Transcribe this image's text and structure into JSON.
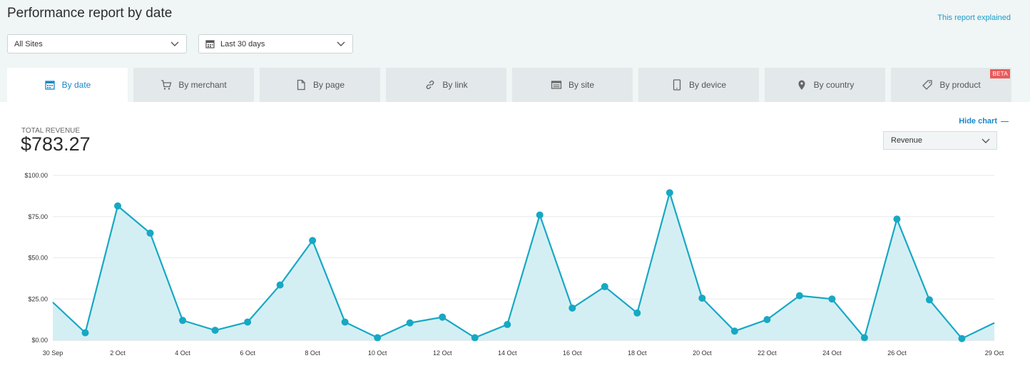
{
  "header": {
    "title": "Performance report by date",
    "explained_link": "This report explained"
  },
  "filters": {
    "sites": "All Sites",
    "period": "Last 30 days"
  },
  "tabs": [
    {
      "label": "By date",
      "icon": "calendar-icon",
      "active": true
    },
    {
      "label": "By merchant",
      "icon": "cart-icon"
    },
    {
      "label": "By page",
      "icon": "page-icon"
    },
    {
      "label": "By link",
      "icon": "link-icon"
    },
    {
      "label": "By site",
      "icon": "site-icon"
    },
    {
      "label": "By device",
      "icon": "device-icon"
    },
    {
      "label": "By country",
      "icon": "location-pin-icon"
    },
    {
      "label": "By product",
      "icon": "tag-icon",
      "badge": "BETA"
    }
  ],
  "summary": {
    "label": "TOTAL REVENUE",
    "value": "$783.27"
  },
  "controls": {
    "hide_chart": "Hide chart",
    "metric": "Revenue"
  },
  "colors": {
    "accent": "#1a88c9",
    "line": "#17a8c4",
    "area": "#d2eef2",
    "badge": "#ec5a5a"
  },
  "chart_data": {
    "type": "area",
    "x": [
      "30 Sep",
      "1 Oct",
      "2 Oct",
      "3 Oct",
      "4 Oct",
      "5 Oct",
      "6 Oct",
      "7 Oct",
      "8 Oct",
      "9 Oct",
      "10 Oct",
      "11 Oct",
      "12 Oct",
      "13 Oct",
      "14 Oct",
      "15 Oct",
      "16 Oct",
      "17 Oct",
      "18 Oct",
      "19 Oct",
      "20 Oct",
      "21 Oct",
      "22 Oct",
      "23 Oct",
      "24 Oct",
      "25 Oct",
      "26 Oct",
      "27 Oct",
      "28 Oct",
      "29 Oct"
    ],
    "x_tick_labels": [
      "30 Sep",
      "2 Oct",
      "4 Oct",
      "6 Oct",
      "8 Oct",
      "10 Oct",
      "12 Oct",
      "14 Oct",
      "16 Oct",
      "18 Oct",
      "20 Oct",
      "22 Oct",
      "24 Oct",
      "26 Oct",
      "29 Oct"
    ],
    "series": [
      {
        "values": [
          23,
          4.5,
          81.5,
          65,
          12,
          6,
          11,
          33.5,
          60.5,
          11,
          1.5,
          10.5,
          14,
          1.5,
          9.5,
          76,
          19.5,
          32.5,
          16.5,
          89.5,
          25.5,
          5.5,
          12.5,
          27,
          25,
          1.5,
          73.5,
          24.5,
          1,
          10.5
        ]
      }
    ],
    "y_ticks": [
      "$0.00",
      "$25.00",
      "$50.00",
      "$75.00",
      "$100.00"
    ],
    "ylim": [
      0,
      100
    ],
    "grid": true
  }
}
